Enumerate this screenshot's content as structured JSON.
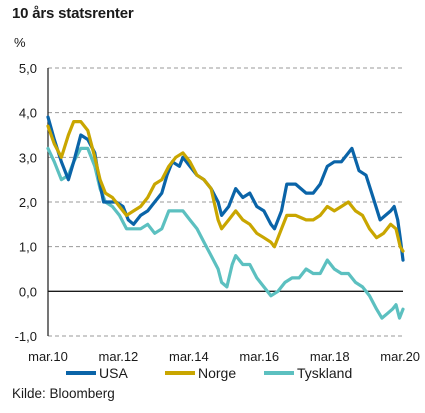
{
  "chart_data": {
    "type": "line",
    "title": "10 års statsrenter",
    "ylabel": "%",
    "xlabel": "",
    "source": "Kilde: Bloomberg",
    "ylim": [
      -1.0,
      5.0
    ],
    "xlim": [
      2010.17,
      2020.25
    ],
    "y_ticks": [
      5.0,
      4.0,
      3.0,
      2.0,
      1.0,
      0.0,
      -1.0
    ],
    "y_tick_labels": [
      "5,0",
      "4,0",
      "3,0",
      "2,0",
      "1,0",
      "0,0",
      "-1,0"
    ],
    "x_ticks": [
      2010.17,
      2012.17,
      2014.17,
      2016.17,
      2018.17,
      2020.17
    ],
    "x_tick_labels": [
      "mar.10",
      "mar.12",
      "mar.14",
      "mar.16",
      "mar.18",
      "mar.20"
    ],
    "grid": "horizontal-dashed",
    "legend": "bottom",
    "series": [
      {
        "name": "USA",
        "color": "#0a64a8",
        "x": [
          2010.17,
          2010.35,
          2010.55,
          2010.75,
          2010.9,
          2011.1,
          2011.3,
          2011.5,
          2011.62,
          2011.75,
          2011.9,
          2012.1,
          2012.3,
          2012.45,
          2012.6,
          2012.8,
          2013.0,
          2013.2,
          2013.4,
          2013.55,
          2013.7,
          2013.9,
          2014.0,
          2014.2,
          2014.4,
          2014.6,
          2014.8,
          2015.0,
          2015.1,
          2015.3,
          2015.5,
          2015.7,
          2015.9,
          2016.1,
          2016.3,
          2016.5,
          2016.6,
          2016.8,
          2016.95,
          2017.2,
          2017.5,
          2017.7,
          2017.9,
          2018.1,
          2018.3,
          2018.5,
          2018.7,
          2018.8,
          2019.0,
          2019.2,
          2019.4,
          2019.6,
          2019.75,
          2019.9,
          2020.0,
          2020.1,
          2020.17,
          2020.25
        ],
        "values": [
          3.9,
          3.4,
          2.9,
          2.5,
          2.9,
          3.5,
          3.4,
          3.1,
          2.5,
          2.0,
          2.0,
          2.0,
          1.9,
          1.6,
          1.5,
          1.7,
          1.8,
          2.0,
          2.2,
          2.6,
          2.9,
          2.8,
          3.0,
          2.8,
          2.6,
          2.5,
          2.3,
          2.0,
          1.7,
          1.9,
          2.3,
          2.1,
          2.2,
          1.9,
          1.8,
          1.5,
          1.4,
          1.8,
          2.4,
          2.4,
          2.2,
          2.2,
          2.4,
          2.8,
          2.9,
          2.9,
          3.1,
          3.2,
          2.7,
          2.6,
          2.1,
          1.6,
          1.7,
          1.8,
          1.9,
          1.6,
          1.2,
          0.7
        ]
      },
      {
        "name": "Norge",
        "color": "#c9a600",
        "x": [
          2010.17,
          2010.35,
          2010.55,
          2010.75,
          2010.9,
          2011.1,
          2011.3,
          2011.5,
          2011.65,
          2011.8,
          2012.0,
          2012.2,
          2012.4,
          2012.6,
          2012.8,
          2013.0,
          2013.2,
          2013.4,
          2013.6,
          2013.8,
          2014.0,
          2014.2,
          2014.4,
          2014.6,
          2014.8,
          2015.0,
          2015.1,
          2015.3,
          2015.5,
          2015.7,
          2015.9,
          2016.1,
          2016.3,
          2016.5,
          2016.6,
          2016.8,
          2016.95,
          2017.2,
          2017.5,
          2017.7,
          2017.9,
          2018.1,
          2018.3,
          2018.5,
          2018.7,
          2018.9,
          2019.1,
          2019.3,
          2019.5,
          2019.7,
          2019.9,
          2020.05,
          2020.17,
          2020.25
        ],
        "values": [
          3.7,
          3.3,
          3.0,
          3.5,
          3.8,
          3.8,
          3.6,
          3.0,
          2.5,
          2.2,
          2.1,
          1.9,
          1.7,
          1.8,
          1.9,
          2.1,
          2.4,
          2.5,
          2.8,
          3.0,
          3.1,
          2.9,
          2.6,
          2.5,
          2.3,
          1.6,
          1.4,
          1.6,
          1.8,
          1.6,
          1.5,
          1.3,
          1.2,
          1.1,
          1.0,
          1.4,
          1.7,
          1.7,
          1.6,
          1.6,
          1.7,
          1.9,
          1.8,
          1.9,
          2.0,
          1.8,
          1.7,
          1.4,
          1.2,
          1.3,
          1.5,
          1.4,
          1.0,
          0.9
        ]
      },
      {
        "name": "Tyskland",
        "color": "#5cc0c0",
        "x": [
          2010.17,
          2010.35,
          2010.55,
          2010.75,
          2010.9,
          2011.1,
          2011.3,
          2011.5,
          2011.65,
          2011.8,
          2012.0,
          2012.2,
          2012.4,
          2012.6,
          2012.8,
          2013.0,
          2013.2,
          2013.4,
          2013.6,
          2013.8,
          2014.0,
          2014.2,
          2014.4,
          2014.6,
          2014.8,
          2015.0,
          2015.1,
          2015.25,
          2015.4,
          2015.5,
          2015.7,
          2015.9,
          2016.1,
          2016.3,
          2016.5,
          2016.7,
          2016.9,
          2017.1,
          2017.3,
          2017.5,
          2017.7,
          2017.9,
          2018.1,
          2018.3,
          2018.5,
          2018.7,
          2018.9,
          2019.1,
          2019.3,
          2019.5,
          2019.65,
          2019.8,
          2019.95,
          2020.05,
          2020.15,
          2020.25
        ],
        "values": [
          3.2,
          2.9,
          2.5,
          2.6,
          2.9,
          3.2,
          3.2,
          2.8,
          2.3,
          2.0,
          1.9,
          1.7,
          1.4,
          1.4,
          1.4,
          1.5,
          1.3,
          1.4,
          1.8,
          1.8,
          1.8,
          1.6,
          1.4,
          1.1,
          0.8,
          0.5,
          0.2,
          0.1,
          0.6,
          0.8,
          0.6,
          0.6,
          0.3,
          0.1,
          -0.1,
          0.0,
          0.2,
          0.3,
          0.3,
          0.5,
          0.4,
          0.4,
          0.7,
          0.5,
          0.4,
          0.4,
          0.2,
          0.1,
          -0.1,
          -0.4,
          -0.6,
          -0.5,
          -0.4,
          -0.3,
          -0.6,
          -0.4
        ]
      }
    ]
  }
}
